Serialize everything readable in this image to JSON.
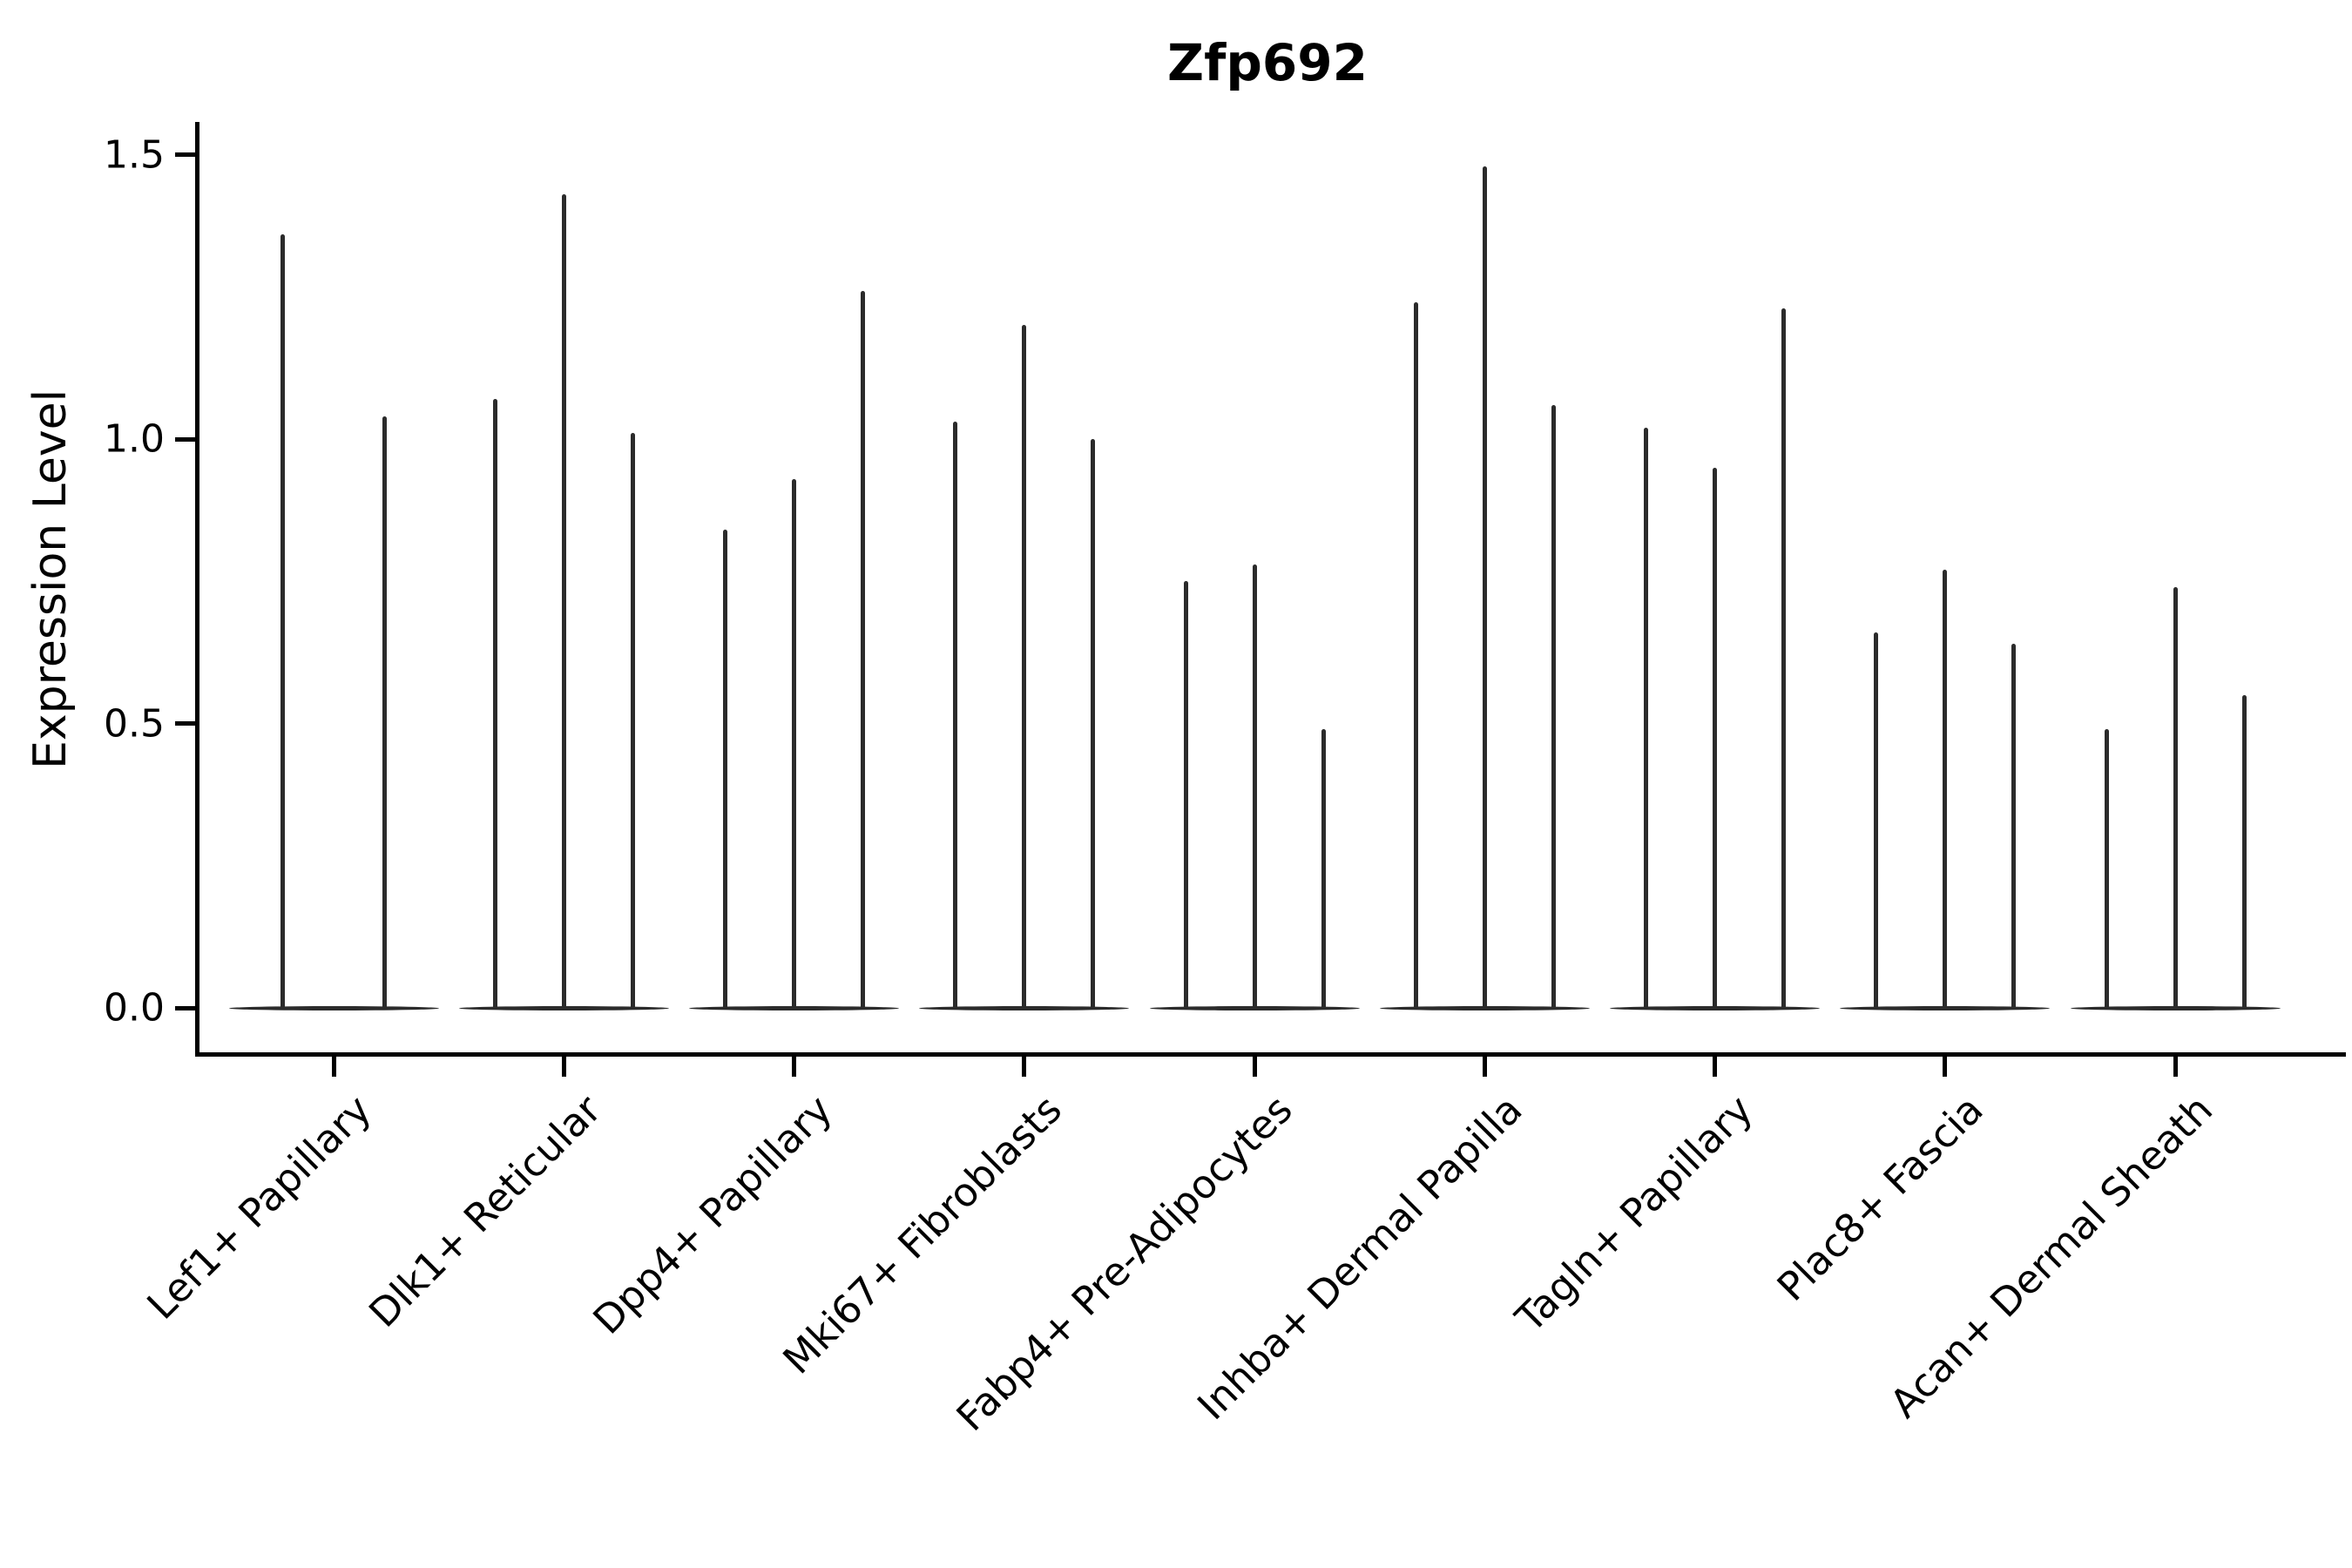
{
  "chart_data": {
    "type": "violin",
    "title": "Zfp692",
    "ylabel": "Expression Level",
    "xlabel": "",
    "categories": [
      "Lef1+ Papillary",
      "Dlk1+ Reticular",
      "Dpp4+ Papillary",
      "Mki67+ Fibroblasts",
      "Fabp4+ Pre-Adipocytes",
      "Inhba+ Dermal Papilla",
      "Tagln+ Papillary",
      "Plac8+ Fascia",
      "Acan+ Dermal Sheath"
    ],
    "series": [
      {
        "category": "Lef1+ Papillary",
        "violin_max_values": [
          1.36,
          1.04
        ]
      },
      {
        "category": "Dlk1+ Reticular",
        "violin_max_values": [
          1.07,
          1.43,
          1.01
        ]
      },
      {
        "category": "Dpp4+ Papillary",
        "violin_max_values": [
          0.84,
          0.93,
          1.26
        ]
      },
      {
        "category": "Mki67+ Fibroblasts",
        "violin_max_values": [
          1.03,
          1.2,
          1.0
        ]
      },
      {
        "category": "Fabp4+ Pre-Adipocytes",
        "violin_max_values": [
          0.75,
          0.78,
          0.49
        ]
      },
      {
        "category": "Inhba+ Dermal Papilla",
        "violin_max_values": [
          1.24,
          1.48,
          1.06
        ]
      },
      {
        "category": "Tagln+ Papillary",
        "violin_max_values": [
          1.02,
          0.95,
          1.23
        ]
      },
      {
        "category": "Plac8+ Fascia",
        "violin_max_values": [
          0.66,
          0.77,
          0.64
        ]
      },
      {
        "category": "Acan+ Dermal Sheath",
        "violin_max_values": [
          0.49,
          0.74,
          0.55
        ]
      }
    ],
    "ytick_labels": [
      "0.0",
      "0.5",
      "1.0",
      "1.5"
    ],
    "ytick_values": [
      0,
      0.5,
      1.0,
      1.5
    ],
    "ylim": [
      0,
      1.56
    ],
    "grid": false,
    "legend": null,
    "note": "Each violin is a near-zero-width spike rising from a flat base at expression 0",
    "ink_color": "#2b2b2b"
  }
}
